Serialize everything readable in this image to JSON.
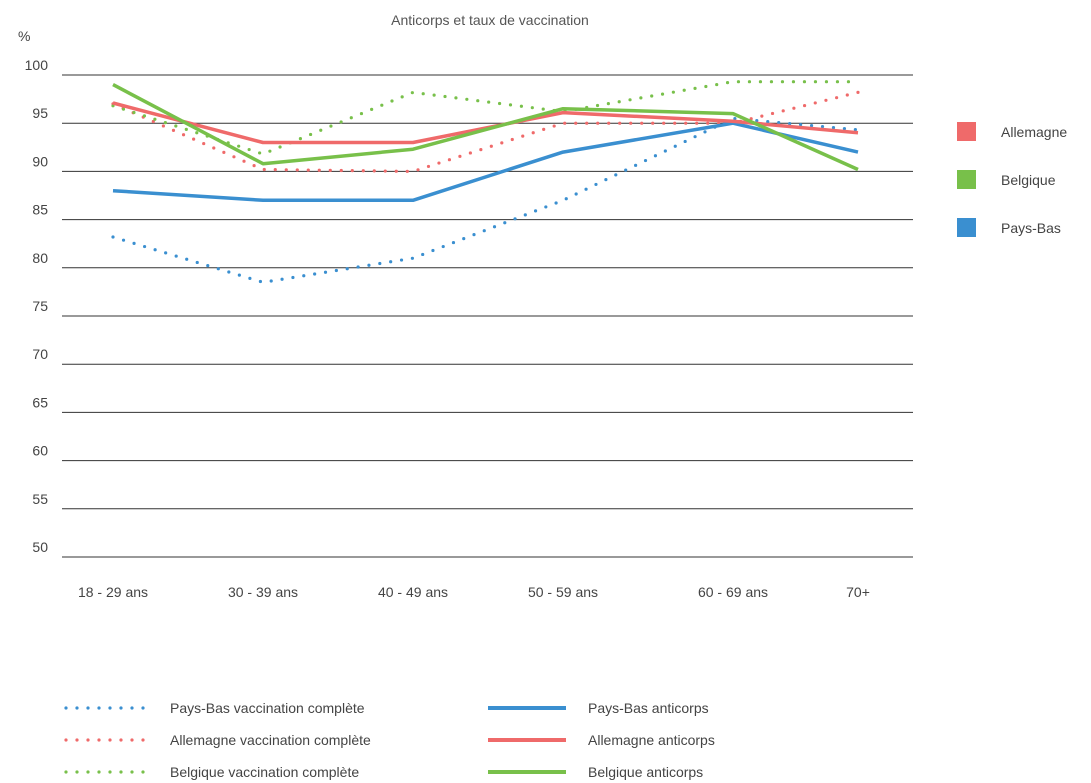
{
  "chart_data": {
    "type": "line",
    "title": "Anticorps et taux de vaccination",
    "ylabel": "%",
    "xlabel": "",
    "ylim": [
      50,
      100
    ],
    "yticks": [
      100,
      95,
      90,
      85,
      80,
      75,
      70,
      65,
      60,
      55,
      50
    ],
    "grid": true,
    "categories": [
      "18 - 29 ans",
      "30 - 39 ans",
      "40 - 49 ans",
      "50 - 59 ans",
      "60 - 69 ans",
      "70+"
    ],
    "colors": {
      "Allemagne": "#ef6a6a",
      "Belgique": "#78c04a",
      "Pays-Bas": "#3a8fd0"
    },
    "country_legend": [
      "Allemagne",
      "Belgique",
      "Pays-Bas"
    ],
    "series": [
      {
        "name": "Pays-Bas vaccination complète",
        "country": "Pays-Bas",
        "style": "dotted",
        "values": [
          83.2,
          78.5,
          81.0,
          87.0,
          95.5,
          94.3
        ]
      },
      {
        "name": "Allemagne vaccination complète",
        "country": "Allemagne",
        "style": "dotted",
        "values": [
          97.0,
          90.2,
          90.0,
          95.0,
          95.0,
          98.2
        ]
      },
      {
        "name": "Belgique vaccination complète",
        "country": "Belgique",
        "style": "dotted",
        "values": [
          96.8,
          91.8,
          98.2,
          96.2,
          99.3,
          99.3
        ]
      },
      {
        "name": "Pays-Bas anticorps",
        "country": "Pays-Bas",
        "style": "solid",
        "values": [
          88.0,
          87.0,
          87.0,
          92.0,
          95.0,
          92.0
        ]
      },
      {
        "name": "Allemagne anticorps",
        "country": "Allemagne",
        "style": "solid",
        "values": [
          97.1,
          93.0,
          93.0,
          96.1,
          95.2,
          94.0
        ]
      },
      {
        "name": "Belgique anticorps",
        "country": "Belgique",
        "style": "solid",
        "values": [
          99.0,
          90.8,
          92.3,
          96.5,
          96.0,
          90.2
        ]
      }
    ],
    "legend_placement": "right and bottom"
  }
}
